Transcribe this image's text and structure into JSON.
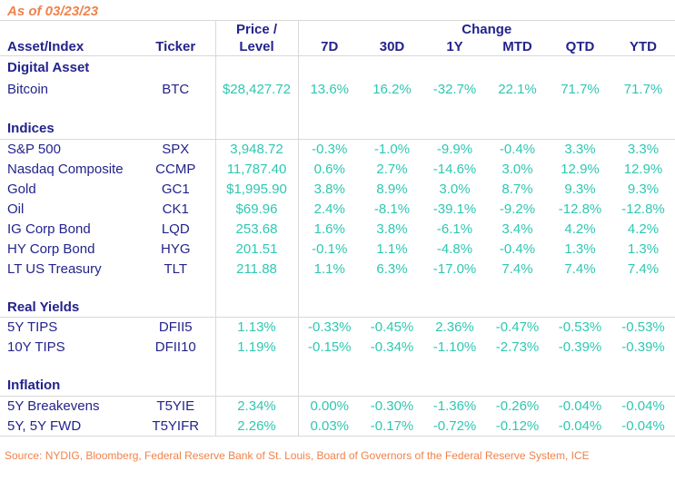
{
  "as_of": "As of 03/23/23",
  "header": {
    "asset": "Asset/Index",
    "ticker": "Ticker",
    "price_line1": "Price /",
    "price_line2": "Level",
    "change_group": "Change",
    "change": [
      "7D",
      "30D",
      "1Y",
      "MTD",
      "QTD",
      "YTD"
    ]
  },
  "source": "Source: NYDIG, Bloomberg, Federal Reserve Bank of St. Louis, Board of Governors of the Federal Reserve System, ICE",
  "colors": {
    "navy": "#23238c",
    "teal": "#2fc7b2",
    "orange": "#f0824b",
    "border": "#d9d9d9"
  },
  "chart_data": {
    "type": "table",
    "title": "As of 03/23/23",
    "columns": [
      "Asset/Index",
      "Ticker",
      "Price / Level",
      "7D",
      "30D",
      "1Y",
      "MTD",
      "QTD",
      "YTD"
    ],
    "column_groups": [
      {
        "label": "Change",
        "columns": [
          "7D",
          "30D",
          "1Y",
          "MTD",
          "QTD",
          "YTD"
        ]
      }
    ],
    "sections": [
      {
        "title": "Digital Asset",
        "underline": false,
        "rows": [
          {
            "asset": "Bitcoin",
            "ticker": "BTC",
            "price": "$28,427.72",
            "changes": [
              "13.6%",
              "16.2%",
              "-32.7%",
              "22.1%",
              "71.7%",
              "71.7%"
            ]
          }
        ]
      },
      {
        "title": "Indices",
        "underline": true,
        "rows": [
          {
            "asset": "S&P 500",
            "ticker": "SPX",
            "price": "3,948.72",
            "changes": [
              "-0.3%",
              "-1.0%",
              "-9.9%",
              "-0.4%",
              "3.3%",
              "3.3%"
            ]
          },
          {
            "asset": "Nasdaq Composite",
            "ticker": "CCMP",
            "price": "11,787.40",
            "changes": [
              "0.6%",
              "2.7%",
              "-14.6%",
              "3.0%",
              "12.9%",
              "12.9%"
            ]
          },
          {
            "asset": "Gold",
            "ticker": "GC1",
            "price": "$1,995.90",
            "changes": [
              "3.8%",
              "8.9%",
              "3.0%",
              "8.7%",
              "9.3%",
              "9.3%"
            ]
          },
          {
            "asset": "Oil",
            "ticker": "CK1",
            "price": "$69.96",
            "changes": [
              "2.4%",
              "-8.1%",
              "-39.1%",
              "-9.2%",
              "-12.8%",
              "-12.8%"
            ]
          },
          {
            "asset": "IG Corp Bond",
            "ticker": "LQD",
            "price": "253.68",
            "changes": [
              "1.6%",
              "3.8%",
              "-6.1%",
              "3.4%",
              "4.2%",
              "4.2%"
            ]
          },
          {
            "asset": "HY Corp Bond",
            "ticker": "HYG",
            "price": "201.51",
            "changes": [
              "-0.1%",
              "1.1%",
              "-4.8%",
              "-0.4%",
              "1.3%",
              "1.3%"
            ]
          },
          {
            "asset": "LT US Treasury",
            "ticker": "TLT",
            "price": "211.88",
            "changes": [
              "1.1%",
              "6.3%",
              "-17.0%",
              "7.4%",
              "7.4%",
              "7.4%"
            ]
          }
        ]
      },
      {
        "title": "Real Yields",
        "underline": true,
        "rows": [
          {
            "asset": "5Y TIPS",
            "ticker": "DFII5",
            "price": "1.13%",
            "changes": [
              "-0.33%",
              "-0.45%",
              "2.36%",
              "-0.47%",
              "-0.53%",
              "-0.53%"
            ]
          },
          {
            "asset": "10Y TIPS",
            "ticker": "DFII10",
            "price": "1.19%",
            "changes": [
              "-0.15%",
              "-0.34%",
              "-1.10%",
              "-2.73%",
              "-0.39%",
              "-0.39%"
            ]
          }
        ]
      },
      {
        "title": "Inflation",
        "underline": true,
        "rows": [
          {
            "asset": "5Y Breakevens",
            "ticker": "T5YIE",
            "price": "2.34%",
            "changes": [
              "0.00%",
              "-0.30%",
              "-1.36%",
              "-0.26%",
              "-0.04%",
              "-0.04%"
            ]
          },
          {
            "asset": "5Y, 5Y FWD",
            "ticker": "T5YIFR",
            "price": "2.26%",
            "changes": [
              "0.03%",
              "-0.17%",
              "-0.72%",
              "-0.12%",
              "-0.04%",
              "-0.04%"
            ]
          }
        ]
      }
    ]
  }
}
